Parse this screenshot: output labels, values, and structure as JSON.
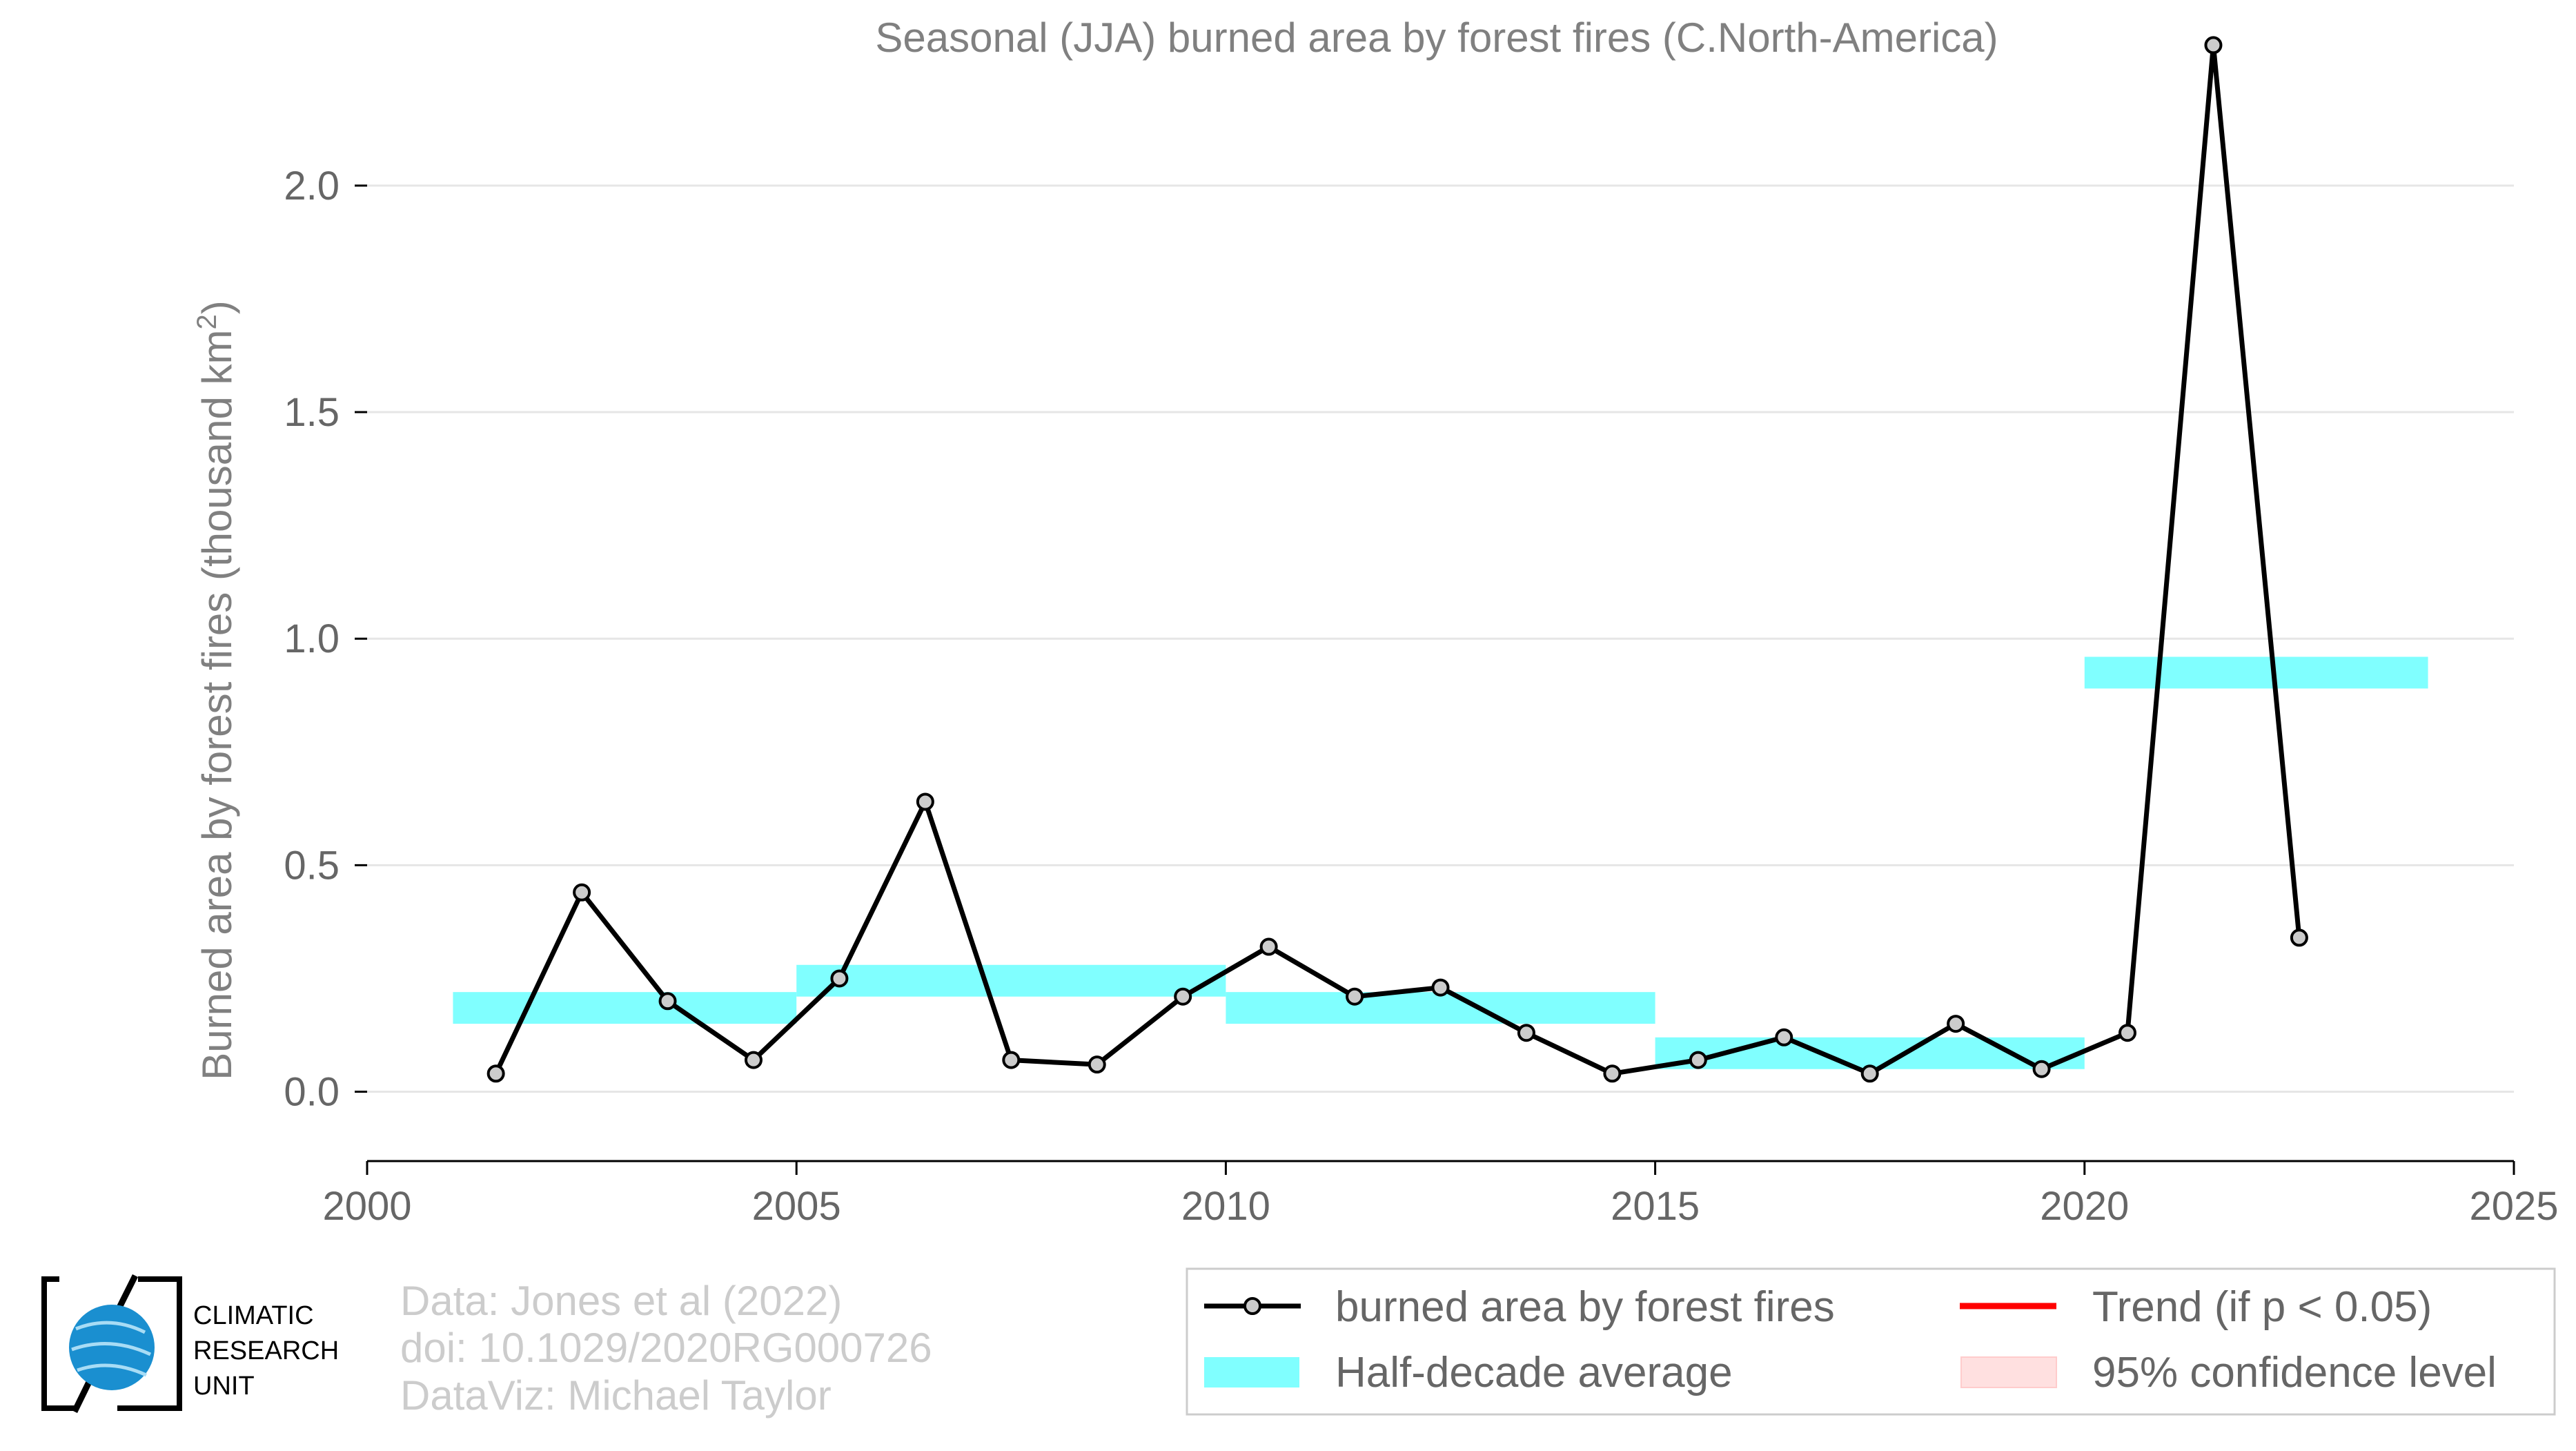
{
  "chart_data": {
    "type": "line",
    "title": "Seasonal (JJA) burned area by forest fires (C.North-America)",
    "ylabel_main": "Burned area by forest fires (thousand km",
    "ylabel_sup": "2",
    "ylabel_end": ")",
    "xlim": [
      2000,
      2025
    ],
    "ylim": [
      -0.15,
      2.3
    ],
    "x_ticks": [
      2000,
      2005,
      2010,
      2015,
      2020,
      2025
    ],
    "x_tick_labels": [
      "2000",
      "2005",
      "2010",
      "2015",
      "2020",
      "2025"
    ],
    "y_ticks": [
      0.0,
      0.5,
      1.0,
      1.5,
      2.0
    ],
    "y_tick_labels": [
      "0.0",
      "0.5",
      "1.0",
      "1.5",
      "2.0"
    ],
    "grid": "horizontal",
    "series": [
      {
        "name": "burned area by forest fires",
        "color": "#000000",
        "x": [
          2001.5,
          2002.5,
          2003.5,
          2004.5,
          2005.5,
          2006.5,
          2007.5,
          2008.5,
          2009.5,
          2010.5,
          2011.5,
          2012.5,
          2013.5,
          2014.5,
          2015.5,
          2016.5,
          2017.5,
          2018.5,
          2019.5,
          2020.5,
          2021.5,
          2022.5
        ],
        "y": [
          0.04,
          0.44,
          0.2,
          0.07,
          0.25,
          0.64,
          0.07,
          0.06,
          0.21,
          0.32,
          0.21,
          0.23,
          0.13,
          0.04,
          0.07,
          0.12,
          0.04,
          0.15,
          0.05,
          0.13,
          2.31,
          0.34
        ]
      }
    ],
    "half_decade_average": {
      "name": "Half-decade average",
      "color": "#80ffff",
      "bands": [
        {
          "x0": 2001,
          "x1": 2005,
          "y0": 0.15,
          "y1": 0.22
        },
        {
          "x0": 2005,
          "x1": 2010,
          "y0": 0.21,
          "y1": 0.28
        },
        {
          "x0": 2010,
          "x1": 2015,
          "y0": 0.15,
          "y1": 0.22
        },
        {
          "x0": 2015,
          "x1": 2020,
          "y0": 0.05,
          "y1": 0.12
        },
        {
          "x0": 2020,
          "x1": 2024,
          "y0": 0.89,
          "y1": 0.96
        }
      ]
    },
    "legend": {
      "placement": "bottom-right",
      "entries": [
        {
          "label": "burned area by forest fires",
          "kind": "line-marker",
          "color": "#000000"
        },
        {
          "label": "Trend (if p < 0.05)",
          "kind": "line",
          "color": "#ff0000"
        },
        {
          "label": "Half-decade average",
          "kind": "patch",
          "color": "#80ffff"
        },
        {
          "label": "95% confidence level",
          "kind": "patch",
          "color": "#ffe0e0"
        }
      ]
    }
  },
  "credits": {
    "line1": "Data: Jones et al (2022)",
    "line2": "doi: 10.1029/2020RG000726",
    "line3": "DataViz: Michael Taylor"
  },
  "logo": {
    "line1": "CLIMATIC",
    "line2": "RESEARCH",
    "line3": "UNIT",
    "color": "#1a8fd0"
  }
}
